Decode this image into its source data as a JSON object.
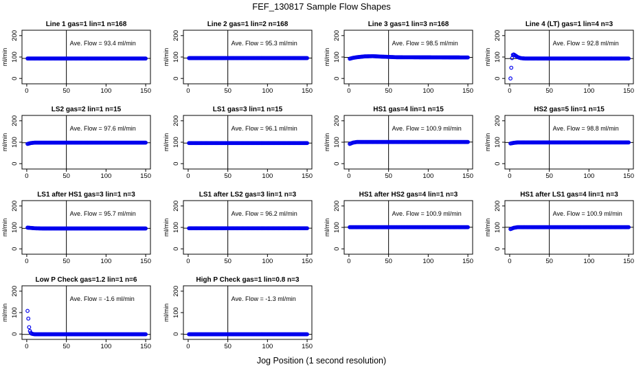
{
  "page": {
    "title": "FEF_130817  Sample Flow Shapes",
    "x_caption": "Jog Position (1 second resolution)"
  },
  "chart_data": [
    {
      "type": "scatter",
      "title": "Line 1 gas=1 lin=1 n=168",
      "annotation": "Ave. Flow =  93.4  ml/min",
      "ylabel": "ml/min",
      "xlim": [
        0,
        150
      ],
      "ylim": [
        0,
        200
      ],
      "x_ticks": [
        0,
        50,
        100,
        150
      ],
      "y_ticks": [
        0,
        100,
        200
      ],
      "vline_x": 50,
      "hline_y": 93.4,
      "color": "#0000ee",
      "series": [
        {
          "x": [
            1,
            150
          ],
          "y": [
            93,
            93
          ]
        }
      ]
    },
    {
      "type": "scatter",
      "title": "Line 2 gas=1 lin=2 n=168",
      "annotation": "Ave. Flow =  95.3  ml/min",
      "ylabel": "ml/min",
      "xlim": [
        0,
        150
      ],
      "ylim": [
        0,
        200
      ],
      "x_ticks": [
        0,
        50,
        100,
        150
      ],
      "y_ticks": [
        0,
        100,
        200
      ],
      "vline_x": 50,
      "hline_y": 95.3,
      "color": "#0000ee",
      "series": [
        {
          "x": [
            1,
            150
          ],
          "y": [
            95,
            95
          ]
        }
      ]
    },
    {
      "type": "scatter",
      "title": "Line 3 gas=1 lin=3 n=168",
      "annotation": "Ave. Flow =  98.5  ml/min",
      "ylabel": "ml/min",
      "xlim": [
        0,
        150
      ],
      "ylim": [
        0,
        200
      ],
      "x_ticks": [
        0,
        50,
        100,
        150
      ],
      "y_ticks": [
        0,
        100,
        200
      ],
      "vline_x": 50,
      "hline_y": 98.5,
      "color": "#0000ee",
      "series": [
        {
          "x": [
            1,
            5,
            10,
            20,
            30,
            40,
            60,
            150
          ],
          "y": [
            92,
            96,
            99,
            103,
            104,
            102,
            99,
            98
          ]
        }
      ]
    },
    {
      "type": "scatter",
      "title": "Line 4 (LT) gas=1 lin=4 n=3",
      "annotation": "Ave. Flow =  92.8  ml/min",
      "ylabel": "ml/min",
      "xlim": [
        0,
        150
      ],
      "ylim": [
        0,
        200
      ],
      "x_ticks": [
        0,
        50,
        100,
        150
      ],
      "y_ticks": [
        0,
        100,
        200
      ],
      "vline_x": 50,
      "hline_y": 92.8,
      "color": "#0000ee",
      "series": [
        {
          "x": [
            1,
            2,
            3,
            4,
            5,
            6,
            8,
            10,
            12,
            14,
            16,
            20,
            150
          ],
          "y": [
            0,
            50,
            95,
            110,
            112,
            110,
            105,
            100,
            97,
            95,
            94,
            93,
            93
          ]
        }
      ]
    },
    {
      "type": "scatter",
      "title": "LS2 gas=2 lin=1 n=15",
      "annotation": "Ave. Flow =  97.6  ml/min",
      "ylabel": "ml/min",
      "xlim": [
        0,
        150
      ],
      "ylim": [
        0,
        200
      ],
      "x_ticks": [
        0,
        50,
        100,
        150
      ],
      "y_ticks": [
        0,
        100,
        200
      ],
      "vline_x": 50,
      "hline_y": 97.6,
      "color": "#0000ee",
      "series": [
        {
          "x": [
            1,
            5,
            10,
            150
          ],
          "y": [
            92,
            96,
            98,
            98
          ]
        }
      ]
    },
    {
      "type": "scatter",
      "title": "LS1 gas=3 lin=1 n=15",
      "annotation": "Ave. Flow =  96.1  ml/min",
      "ylabel": "ml/min",
      "xlim": [
        0,
        150
      ],
      "ylim": [
        0,
        200
      ],
      "x_ticks": [
        0,
        50,
        100,
        150
      ],
      "y_ticks": [
        0,
        100,
        200
      ],
      "vline_x": 50,
      "hline_y": 96.1,
      "color": "#0000ee",
      "series": [
        {
          "x": [
            1,
            150
          ],
          "y": [
            96,
            96
          ]
        }
      ]
    },
    {
      "type": "scatter",
      "title": "HS1 gas=4 lin=1 n=15",
      "annotation": "Ave. Flow =  100.9  ml/min",
      "ylabel": "ml/min",
      "xlim": [
        0,
        150
      ],
      "ylim": [
        0,
        200
      ],
      "x_ticks": [
        0,
        50,
        100,
        150
      ],
      "y_ticks": [
        0,
        100,
        200
      ],
      "vline_x": 50,
      "hline_y": 100.9,
      "color": "#0000ee",
      "series": [
        {
          "x": [
            1,
            5,
            10,
            150
          ],
          "y": [
            92,
            98,
            101,
            101
          ]
        }
      ]
    },
    {
      "type": "scatter",
      "title": "HS2 gas=5 lin=1 n=15",
      "annotation": "Ave. Flow =  98.8  ml/min",
      "ylabel": "ml/min",
      "xlim": [
        0,
        150
      ],
      "ylim": [
        0,
        200
      ],
      "x_ticks": [
        0,
        50,
        100,
        150
      ],
      "y_ticks": [
        0,
        100,
        200
      ],
      "vline_x": 50,
      "hline_y": 98.8,
      "color": "#0000ee",
      "series": [
        {
          "x": [
            1,
            5,
            10,
            150
          ],
          "y": [
            94,
            97,
            99,
            99
          ]
        }
      ]
    },
    {
      "type": "scatter",
      "title": "LS1 after HS1 gas=3 lin=1 n=3",
      "annotation": "Ave. Flow =  95.7  ml/min",
      "ylabel": "ml/min",
      "xlim": [
        0,
        150
      ],
      "ylim": [
        0,
        200
      ],
      "x_ticks": [
        0,
        50,
        100,
        150
      ],
      "y_ticks": [
        0,
        100,
        200
      ],
      "vline_x": 50,
      "hline_y": 95.7,
      "color": "#0000ee",
      "series": [
        {
          "x": [
            1,
            10,
            20,
            150
          ],
          "y": [
            99,
            96,
            95,
            95
          ]
        }
      ]
    },
    {
      "type": "scatter",
      "title": "LS1 after LS2 gas=3 lin=1 n=3",
      "annotation": "Ave. Flow =  96.2  ml/min",
      "ylabel": "ml/min",
      "xlim": [
        0,
        150
      ],
      "ylim": [
        0,
        200
      ],
      "x_ticks": [
        0,
        50,
        100,
        150
      ],
      "y_ticks": [
        0,
        100,
        200
      ],
      "vline_x": 50,
      "hline_y": 96.2,
      "color": "#0000ee",
      "series": [
        {
          "x": [
            1,
            150
          ],
          "y": [
            96,
            96
          ]
        }
      ]
    },
    {
      "type": "scatter",
      "title": "HS1 after HS2 gas=4 lin=1 n=3",
      "annotation": "Ave. Flow =  100.9  ml/min",
      "ylabel": "ml/min",
      "xlim": [
        0,
        150
      ],
      "ylim": [
        0,
        200
      ],
      "x_ticks": [
        0,
        50,
        100,
        150
      ],
      "y_ticks": [
        0,
        100,
        200
      ],
      "vline_x": 50,
      "hline_y": 100.9,
      "color": "#0000ee",
      "series": [
        {
          "x": [
            1,
            150
          ],
          "y": [
            101,
            101
          ]
        }
      ]
    },
    {
      "type": "scatter",
      "title": "HS1 after LS1 gas=4 lin=1 n=3",
      "annotation": "Ave. Flow =  100.9  ml/min",
      "ylabel": "ml/min",
      "xlim": [
        0,
        150
      ],
      "ylim": [
        0,
        200
      ],
      "x_ticks": [
        0,
        50,
        100,
        150
      ],
      "y_ticks": [
        0,
        100,
        200
      ],
      "vline_x": 50,
      "hline_y": 100.9,
      "color": "#0000ee",
      "series": [
        {
          "x": [
            1,
            5,
            10,
            150
          ],
          "y": [
            92,
            98,
            101,
            101
          ]
        }
      ]
    },
    {
      "type": "scatter",
      "title": "Low P Check gas=1.2 lin=1 n=6",
      "annotation": "Ave. Flow =  -1.6  ml/min",
      "ylabel": "ml/min",
      "xlim": [
        0,
        150
      ],
      "ylim": [
        0,
        200
      ],
      "x_ticks": [
        0,
        50,
        100,
        150
      ],
      "y_ticks": [
        0,
        100,
        200
      ],
      "vline_x": 50,
      "hline_y": -1.6,
      "color": "#0000ee",
      "series": [
        {
          "x": [
            1,
            2,
            3,
            4,
            5,
            6,
            8,
            10,
            150
          ],
          "y": [
            108,
            72,
            32,
            14,
            6,
            2,
            0,
            -1,
            -1
          ]
        }
      ]
    },
    {
      "type": "scatter",
      "title": "High P Check gas=1 lin=0.8 n=3",
      "annotation": "Ave. Flow =  -1.3  ml/min",
      "ylabel": "ml/min",
      "xlim": [
        0,
        150
      ],
      "ylim": [
        0,
        200
      ],
      "x_ticks": [
        0,
        50,
        100,
        150
      ],
      "y_ticks": [
        0,
        100,
        200
      ],
      "vline_x": 50,
      "hline_y": -1.3,
      "color": "#0000ee",
      "series": [
        {
          "x": [
            1,
            150
          ],
          "y": [
            -1,
            -1
          ]
        }
      ]
    }
  ]
}
